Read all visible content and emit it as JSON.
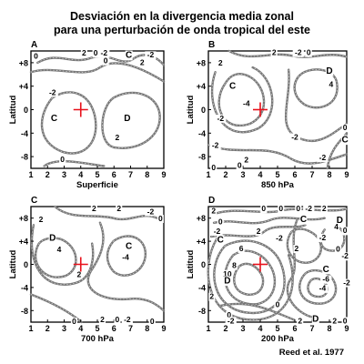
{
  "title_line1": "Desviación en la divergencia media zonal",
  "title_line2": "para una perturbación de onda tropical del este",
  "credit": "Reed et al. 1977",
  "latitude_label": "Latitud",
  "y_ticks": [
    "+8",
    "+4",
    "0",
    "-4",
    "-8"
  ],
  "x_ticks": [
    "1",
    "2",
    "3",
    "4",
    "5",
    "6",
    "7",
    "8",
    "9"
  ],
  "center_marker_color": "#e8101a",
  "contour_color": "#777777",
  "panels": [
    {
      "letter": "A",
      "level": "Superficie",
      "labels": [
        {
          "t": "0",
          "x": 1.3,
          "y": 8.7
        },
        {
          "t": "2",
          "x": 4.2,
          "y": 9.2
        },
        {
          "t": "0",
          "x": 4.9,
          "y": 9.2
        },
        {
          "t": "-2",
          "x": 5.4,
          "y": 9.2
        },
        {
          "t": "C",
          "x": 6.9,
          "y": 8.8
        },
        {
          "t": "-2",
          "x": 8.2,
          "y": 8.9
        },
        {
          "t": "0",
          "x": 5.5,
          "y": 7.9
        },
        {
          "t": "2",
          "x": 7.7,
          "y": 7.6
        },
        {
          "t": "-2",
          "x": 2.3,
          "y": 2.5
        },
        {
          "t": "C",
          "x": 2.4,
          "y": -1.9
        },
        {
          "t": "D",
          "x": 6.8,
          "y": -1.9
        },
        {
          "t": "2",
          "x": 6.2,
          "y": -5.2
        },
        {
          "t": "0",
          "x": 2.9,
          "y": -8.9
        }
      ]
    },
    {
      "letter": "B",
      "level": "850 hPa",
      "labels": [
        {
          "t": "2",
          "x": 4.8,
          "y": 9.3
        },
        {
          "t": "-2",
          "x": 6.2,
          "y": 9.3
        },
        {
          "t": "0",
          "x": 6.8,
          "y": 9.3
        },
        {
          "t": "2",
          "x": 1.7,
          "y": 7.5
        },
        {
          "t": "D",
          "x": 8.0,
          "y": 6.1
        },
        {
          "t": "4",
          "x": 8.1,
          "y": 3.9
        },
        {
          "t": "C",
          "x": 2.4,
          "y": 3.6
        },
        {
          "t": "-4",
          "x": 3.2,
          "y": 0.6
        },
        {
          "t": "-2",
          "x": 1.7,
          "y": -1.9
        },
        {
          "t": "-2",
          "x": 6.0,
          "y": -5.1
        },
        {
          "t": "0",
          "x": 8.9,
          "y": -3.5
        },
        {
          "t": "-2",
          "x": 1.4,
          "y": -6.5
        },
        {
          "t": "2",
          "x": 3.2,
          "y": -9.0
        },
        {
          "t": "0",
          "x": 2.8,
          "y": -9.9
        },
        {
          "t": "-2",
          "x": 7.6,
          "y": -8.6
        },
        {
          "t": "C",
          "x": 8.9,
          "y": -5.6
        },
        {
          "t": "0",
          "x": 1.3,
          "y": -10.3
        }
      ]
    },
    {
      "letter": "C",
      "level": "700 hPa",
      "labels": [
        {
          "t": "2",
          "x": 4.8,
          "y": 9.2
        },
        {
          "t": "2",
          "x": 6.3,
          "y": 9.2
        },
        {
          "t": "2",
          "x": 1.6,
          "y": 7.3
        },
        {
          "t": "-2",
          "x": 8.2,
          "y": 8.7
        },
        {
          "t": "0",
          "x": 8.8,
          "y": 7.5
        },
        {
          "t": "D",
          "x": 2.3,
          "y": 4.1
        },
        {
          "t": "4",
          "x": 2.7,
          "y": 2.1
        },
        {
          "t": "C",
          "x": 6.9,
          "y": 2.7
        },
        {
          "t": "-4",
          "x": 6.7,
          "y": 0.8
        },
        {
          "t": "2",
          "x": 3.9,
          "y": -2.2
        },
        {
          "t": "0",
          "x": 3.6,
          "y": -10.3
        },
        {
          "t": "2",
          "x": 5.3,
          "y": -10.0
        },
        {
          "t": "0",
          "x": 6.2,
          "y": -10.0
        },
        {
          "t": "-2",
          "x": 6.8,
          "y": -10.0
        },
        {
          "t": "0",
          "x": 8.3,
          "y": -10.3
        }
      ]
    },
    {
      "letter": "D",
      "level": "200 hPa",
      "labels": [
        {
          "t": "0",
          "x": 4.2,
          "y": 9.2
        },
        {
          "t": "0",
          "x": 5.2,
          "y": 9.2
        },
        {
          "t": "0",
          "x": 6.2,
          "y": 9.2
        },
        {
          "t": "-2",
          "x": 6.8,
          "y": 9.2
        },
        {
          "t": "2",
          "x": 7.7,
          "y": 9.2
        },
        {
          "t": "2",
          "x": 1.3,
          "y": 8.8
        },
        {
          "t": "0",
          "x": 1.7,
          "y": 6.9
        },
        {
          "t": "C",
          "x": 6.5,
          "y": 7.3
        },
        {
          "t": "D",
          "x": 8.6,
          "y": 7.2
        },
        {
          "t": "4",
          "x": 8.4,
          "y": 6.1
        },
        {
          "t": "0",
          "x": 8.9,
          "y": 5.4
        },
        {
          "t": "-2",
          "x": 1.5,
          "y": 5.3
        },
        {
          "t": "2",
          "x": 3.9,
          "y": 5.3
        },
        {
          "t": "-2",
          "x": 5.1,
          "y": 4.1
        },
        {
          "t": "-2",
          "x": 7.6,
          "y": 4.2
        },
        {
          "t": "C",
          "x": 1.7,
          "y": 3.8
        },
        {
          "t": "0",
          "x": 8.5,
          "y": 2.2
        },
        {
          "t": "2",
          "x": 6.1,
          "y": 2.3
        },
        {
          "t": "6",
          "x": 2.9,
          "y": 2.3
        },
        {
          "t": "-2",
          "x": 8.9,
          "y": 1.0
        },
        {
          "t": "8",
          "x": 2.5,
          "y": -0.6
        },
        {
          "t": "C",
          "x": 7.8,
          "y": -1.3
        },
        {
          "t": "10",
          "x": 2.1,
          "y": -2.1
        },
        {
          "t": "-6",
          "x": 7.8,
          "y": -3.0
        },
        {
          "t": "D",
          "x": 2.1,
          "y": -3.3
        },
        {
          "t": "-2",
          "x": 9.0,
          "y": -3.6
        },
        {
          "t": "-4",
          "x": 7.6,
          "y": -4.6
        },
        {
          "t": "2",
          "x": 1.2,
          "y": -6.0
        },
        {
          "t": "0",
          "x": 5.0,
          "y": -7.4
        },
        {
          "t": "0",
          "x": 2.2,
          "y": -9.2
        },
        {
          "t": "-2",
          "x": 2.3,
          "y": -10.2
        },
        {
          "t": "2",
          "x": 6.3,
          "y": -10.2
        },
        {
          "t": "D",
          "x": 7.2,
          "y": -9.9
        },
        {
          "t": "2",
          "x": 8.3,
          "y": -10.2
        },
        {
          "t": "0",
          "x": 8.9,
          "y": -10.2
        }
      ]
    }
  ]
}
